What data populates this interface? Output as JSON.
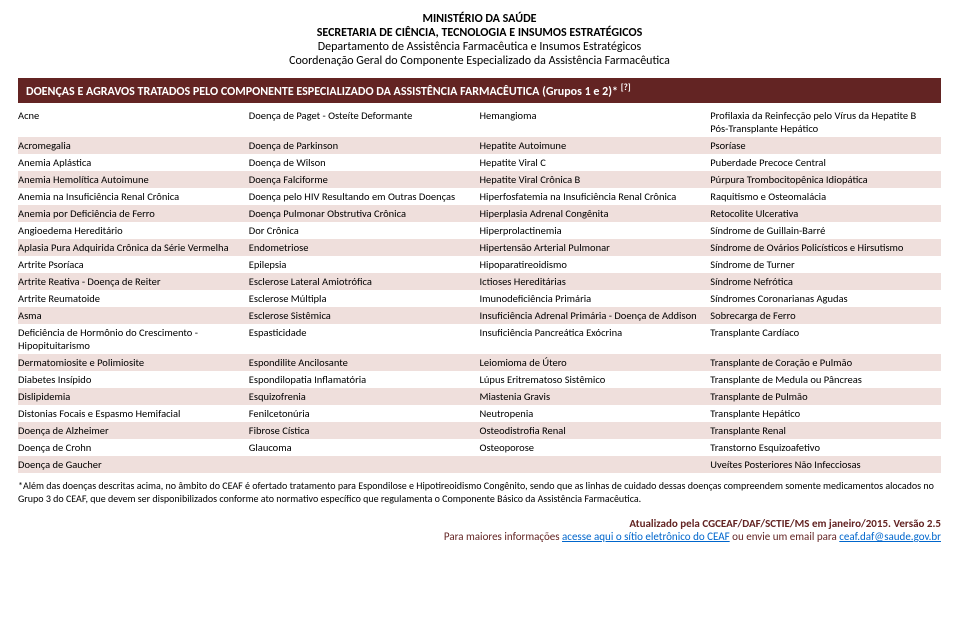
{
  "header": {
    "line1": "MINISTÉRIO DA SAÚDE",
    "line2": "SECRETARIA DE CIÊNCIA, TECNOLOGIA E INSUMOS ESTRATÉGICOS",
    "line3": "Departamento de Assistência Farmacêutica e Insumos Estratégicos",
    "line4": "Coordenação Geral do Componente Especializado da Assistência Farmacêutica"
  },
  "title_bar": {
    "text": "DOENÇAS E AGRAVOS TRATADOS PELO COMPONENTE ESPECIALIZADO DA ASSISTÊNCIA FARMACÊUTICA (Grupos 1 e 2)*",
    "sup": "[?]"
  },
  "colors": {
    "title_bg": "#632423",
    "title_fg": "#ffffff",
    "row_even_bg": "#efdfdc",
    "row_odd_bg": "#ffffff",
    "footer_color": "#632423",
    "link_color": "#0066cc"
  },
  "rows": [
    [
      "Acne",
      "Doença de Paget - Osteíte Deformante",
      "Hemangioma",
      "Profilaxia da Reinfecção pelo Vírus da Hepatite B Pós-Transplante Hepático"
    ],
    [
      "Acromegalia",
      "Doença de Parkinson",
      "Hepatite Autoimune",
      "Psoríase"
    ],
    [
      "Anemia Aplástica",
      "Doença de Wilson",
      "Hepatite Viral C",
      "Puberdade Precoce Central"
    ],
    [
      "Anemia Hemolítica Autoimune",
      "Doença Falciforme",
      "Hepatite Viral Crônica B",
      "Púrpura Trombocitopênica Idiopática"
    ],
    [
      "Anemia na Insuficiência Renal Crônica",
      "Doença pelo HIV Resultando em Outras Doenças",
      "Hiperfosfatemia na Insuficiência Renal Crônica",
      "Raquitismo e Osteomalácia"
    ],
    [
      "Anemia por Deficiência de Ferro",
      "Doença Pulmonar Obstrutiva Crônica",
      "Hiperplasia Adrenal Congênita",
      "Retocolite Ulcerativa"
    ],
    [
      "Angioedema Hereditário",
      "Dor Crônica",
      "Hiperprolactinemia",
      "Síndrome de Guillain-Barré"
    ],
    [
      "Aplasia Pura Adquirida Crônica da Série Vermelha",
      "Endometriose",
      "Hipertensão Arterial Pulmonar",
      "Síndrome de Ovários Policísticos e Hirsutismo"
    ],
    [
      "Artrite Psoríaca",
      "Epilepsia",
      "Hipoparatireoidismo",
      "Síndrome de Turner"
    ],
    [
      "Artrite Reativa - Doença de Reiter",
      "Esclerose Lateral Amiotrófica",
      "Ictioses Hereditárias",
      "Síndrome Nefrótica"
    ],
    [
      "Artrite Reumatoide",
      "Esclerose Múltipla",
      "Imunodeficiência Primária",
      "Síndromes Coronarianas Agudas"
    ],
    [
      "Asma",
      "Esclerose Sistêmica",
      "Insuficiência Adrenal Primária - Doença de Addison",
      "Sobrecarga de Ferro"
    ],
    [
      "Deficiência de Hormônio do Crescimento - Hipopituitarismo",
      "Espasticidade",
      "Insuficiência Pancreática Exócrina",
      "Transplante Cardíaco"
    ],
    [
      "Dermatomiosite e Polimiosite",
      "Espondilite Ancilosante",
      "Leiomioma de Útero",
      "Transplante de Coração e Pulmão"
    ],
    [
      "Diabetes Insípido",
      "Espondilopatia Inflamatória",
      "Lúpus Eritrematoso Sistêmico",
      "Transplante de Medula ou Pâncreas"
    ],
    [
      "Dislipidemia",
      "Esquizofrenia",
      "Miastenia Gravis",
      "Transplante de Pulmão"
    ],
    [
      "Distonias Focais e Espasmo Hemifacial",
      "Fenilcetonúria",
      "Neutropenia",
      "Transplante Hepático"
    ],
    [
      "Doença de Alzheimer",
      "Fibrose Cística",
      "Osteodistrofia Renal",
      "Transplante Renal"
    ],
    [
      "Doença de Crohn",
      "Glaucoma",
      "Osteoporose",
      "Transtorno Esquizoafetivo"
    ],
    [
      "Doença de Gaucher",
      "",
      "",
      "Uveítes Posteriores Não Infecciosas"
    ]
  ],
  "footnote": "*Além das doenças descritas acima, no âmbito do CEAF é ofertado tratamento para Espondilose e Hipotireoidismo Congênito, sendo que as linhas de cuidado dessas doenças compreendem somente medicamentos alocados no Grupo 3 do CEAF, que devem ser disponibilizados conforme ato normativo específico que regulamenta o Componente Básico da Assistência Farmacêutica.",
  "footer": {
    "updated": "Atualizado pela CGCEAF/DAF/SCTIE/MS em janeiro/2015. Versão 2.5",
    "info_pre": "Para maiores informações ",
    "info_link": "acesse aqui o sítio eletrônico do CEAF",
    "info_post": " ou envie um email para ",
    "email": "ceaf.daf@saude.gov.br"
  }
}
